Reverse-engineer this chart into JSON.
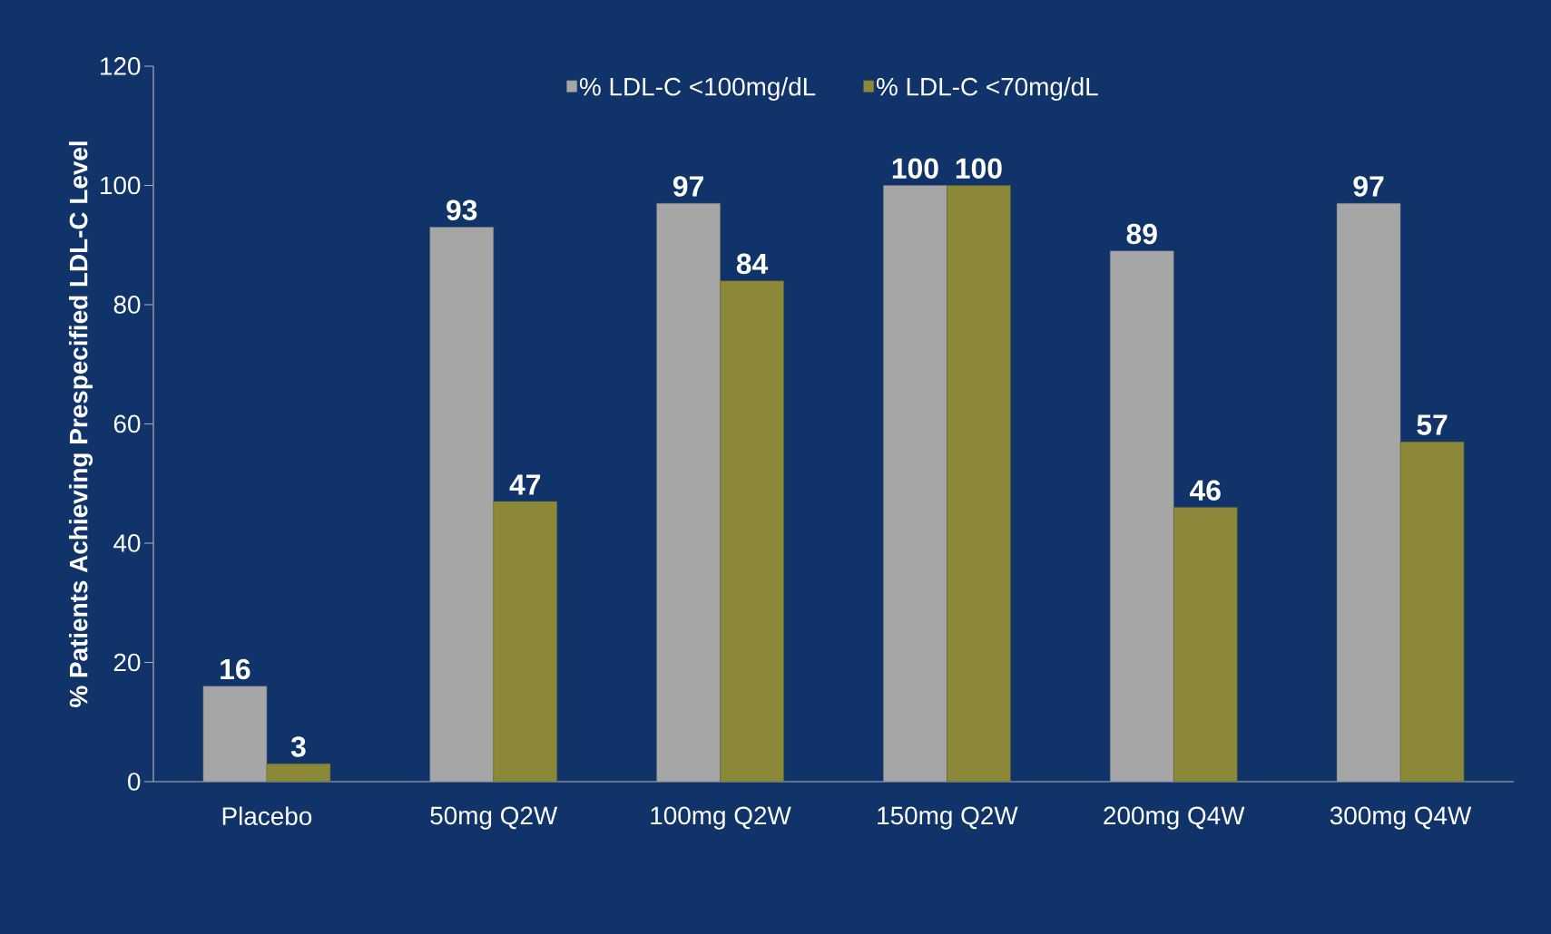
{
  "chart_data": {
    "type": "bar",
    "ylabel": "% Patients Achieving Prespecified LDL-C Level",
    "categories": [
      "Placebo",
      "50mg Q2W",
      "100mg Q2W",
      "150mg Q2W",
      "200mg Q4W",
      "300mg Q4W"
    ],
    "series": [
      {
        "name": "% LDL-C <100mg/dL",
        "color": "#a6a6a6",
        "values": [
          16,
          93,
          97,
          100,
          89,
          97
        ]
      },
      {
        "name": "% LDL-C <70mg/dL",
        "color": "#8b883a",
        "values": [
          3,
          47,
          84,
          100,
          46,
          57
        ]
      }
    ],
    "ylim": [
      0,
      120
    ],
    "yticks": [
      0,
      20,
      40,
      60,
      80,
      100,
      120
    ],
    "data_labels": true,
    "legend": "top"
  }
}
